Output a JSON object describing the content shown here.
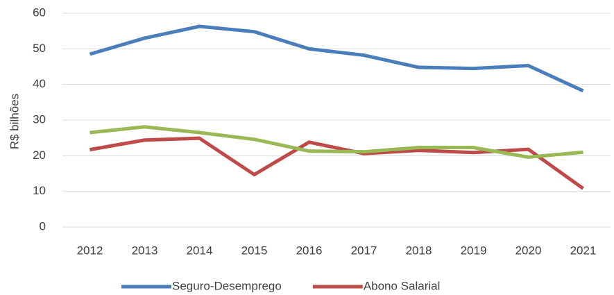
{
  "chart_data": {
    "type": "line",
    "y_label": "R$ bilhões",
    "categories": [
      "2012",
      "2013",
      "2014",
      "2015",
      "2016",
      "2017",
      "2018",
      "2019",
      "2020",
      "2021"
    ],
    "series": [
      {
        "name": "Seguro-Desemprego",
        "color": "#4a7ebb",
        "values": [
          48.5,
          53,
          56.3,
          54.8,
          50,
          48.2,
          44.8,
          44.5,
          45.3,
          38.2
        ]
      },
      {
        "name": "Abono Salarial",
        "color": "#be4b48",
        "values": [
          21.7,
          24.4,
          24.9,
          14.7,
          23.8,
          20.6,
          21.5,
          20.9,
          21.8,
          10.8
        ]
      },
      {
        "color": "#98b954",
        "values": [
          26.5,
          28.1,
          26.5,
          24.6,
          21.3,
          21.1,
          22.3,
          22.3,
          19.6,
          21.0
        ]
      }
    ],
    "ylim": [
      0,
      60
    ],
    "yticks": [
      0,
      10,
      20,
      30,
      40,
      50,
      60
    ],
    "grid": true
  }
}
